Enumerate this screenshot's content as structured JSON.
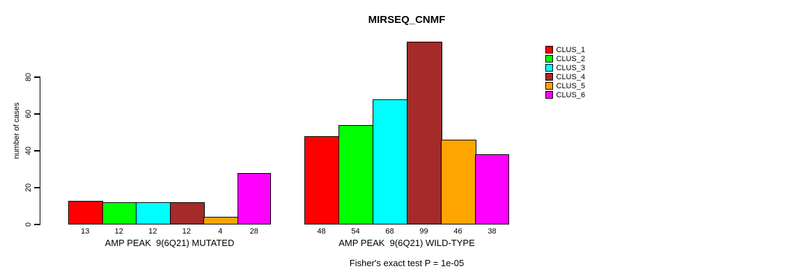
{
  "chart_data": {
    "type": "bar",
    "title": "MIRSEQ_CNMF",
    "ylabel": "number of cases",
    "yticks": [
      0,
      20,
      40,
      60,
      80
    ],
    "ylim": [
      0,
      80
    ],
    "grid": false,
    "legend_position": "right",
    "clusters": [
      {
        "label": "CLUS_1",
        "color": "#FF0000"
      },
      {
        "label": "CLUS_2",
        "color": "#00FF00"
      },
      {
        "label": "CLUS_3",
        "color": "#00FFFF"
      },
      {
        "label": "CLUS_4",
        "color": "#A52A2A"
      },
      {
        "label": "CLUS_5",
        "color": "#FFA500"
      },
      {
        "label": "CLUS_6",
        "color": "#FF00FF"
      }
    ],
    "groups": [
      {
        "label": "AMP PEAK  9(6Q21) MUTATED",
        "values": [
          13,
          12,
          12,
          12,
          4,
          28
        ]
      },
      {
        "label": "AMP PEAK  9(6Q21) WILD-TYPE",
        "values": [
          48,
          54,
          68,
          99,
          46,
          38
        ]
      }
    ],
    "annotation": "Fisher's exact test P = 1e-05"
  }
}
